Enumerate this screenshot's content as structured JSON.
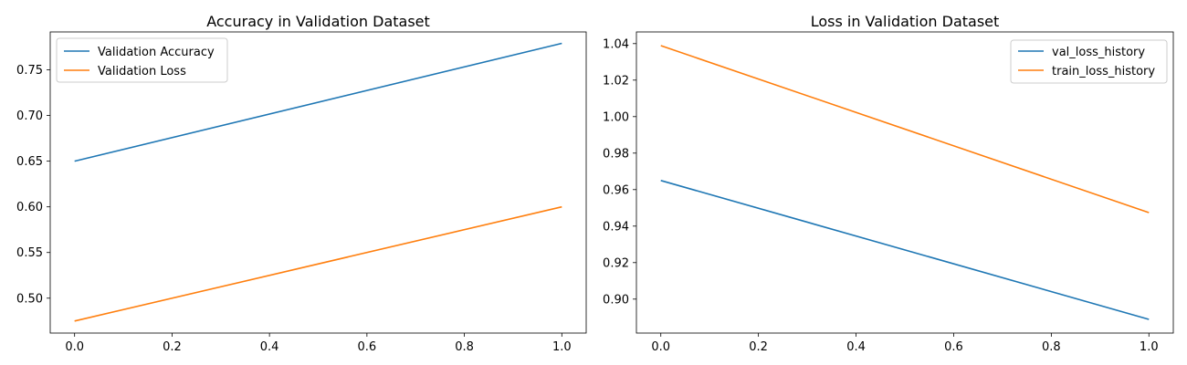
{
  "chart_data": [
    {
      "type": "line",
      "title": "Accuracy in Validation Dataset",
      "xlabel": "",
      "ylabel": "",
      "xlim": [
        -0.05,
        1.05
      ],
      "ylim": [
        0.4618,
        0.7915
      ],
      "x_ticks": [
        "0.0",
        "0.2",
        "0.4",
        "0.6",
        "0.8",
        "1.0"
      ],
      "y_ticks": [
        "0.50",
        "0.55",
        "0.60",
        "0.65",
        "0.70",
        "0.75"
      ],
      "legend": "top-left",
      "grid": false,
      "series": [
        {
          "name": "Validation Accuracy",
          "color": "#1f77b4",
          "x": [
            0.0,
            1.0
          ],
          "y": [
            0.65,
            0.779
          ]
        },
        {
          "name": "Validation Loss",
          "color": "#ff7f0e",
          "x": [
            0.0,
            1.0
          ],
          "y": [
            0.475,
            0.6
          ]
        }
      ]
    },
    {
      "type": "line",
      "title": "Loss in Validation Dataset",
      "xlabel": "",
      "ylabel": "",
      "xlim": [
        -0.05,
        1.05
      ],
      "ylim": [
        0.8814,
        1.0464
      ],
      "x_ticks": [
        "0.0",
        "0.2",
        "0.4",
        "0.6",
        "0.8",
        "1.0"
      ],
      "y_ticks": [
        "0.90",
        "0.92",
        "0.94",
        "0.96",
        "0.98",
        "1.00",
        "1.02",
        "1.04"
      ],
      "legend": "top-right",
      "grid": false,
      "series": [
        {
          "name": "val_loss_history",
          "color": "#1f77b4",
          "x": [
            0.0,
            1.0
          ],
          "y": [
            0.965,
            0.8889
          ]
        },
        {
          "name": "train_loss_history",
          "color": "#ff7f0e",
          "x": [
            0.0,
            1.0
          ],
          "y": [
            1.0389,
            0.9474
          ]
        }
      ]
    }
  ]
}
